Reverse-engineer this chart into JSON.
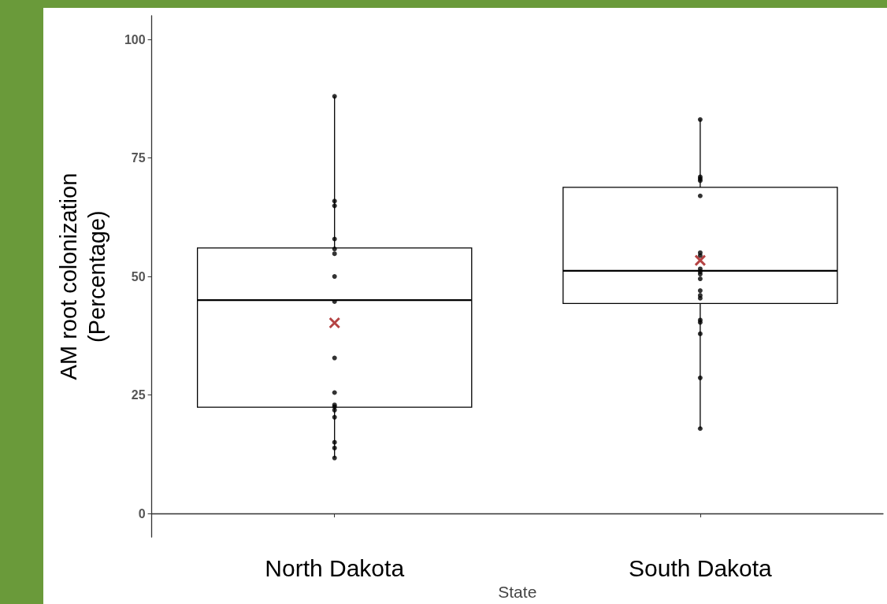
{
  "chart_data": {
    "type": "box",
    "xlabel": "State",
    "ylabel": "AM root colonization\n(Percentage)",
    "categories": [
      "North Dakota",
      "South Dakota"
    ],
    "ylim": [
      -5,
      105
    ],
    "yticks": [
      0,
      25,
      50,
      75,
      100
    ],
    "grid": false,
    "boxes": [
      {
        "low": 11.7,
        "q1": 22.4,
        "median": 45,
        "q3": 56,
        "high": 88,
        "mean": 40.2
      },
      {
        "low": 17.9,
        "q1": 44.3,
        "median": 51.2,
        "q3": 68.8,
        "high": 83.1,
        "mean": 53.4
      }
    ],
    "series": [
      {
        "type": "scatter",
        "color": "#000000",
        "marker": "circle",
        "x": [
          "North Dakota",
          "North Dakota",
          "North Dakota",
          "North Dakota",
          "North Dakota",
          "North Dakota",
          "North Dakota",
          "North Dakota",
          "North Dakota",
          "North Dakota",
          "North Dakota",
          "North Dakota",
          "North Dakota",
          "North Dakota",
          "North Dakota",
          "North Dakota",
          "North Dakota",
          "South Dakota",
          "South Dakota",
          "South Dakota",
          "South Dakota",
          "South Dakota",
          "South Dakota",
          "South Dakota",
          "South Dakota",
          "South Dakota",
          "South Dakota",
          "South Dakota",
          "South Dakota",
          "South Dakota",
          "South Dakota",
          "South Dakota",
          "South Dakota",
          "South Dakota",
          "South Dakota",
          "South Dakota"
        ],
        "values": [
          88,
          65.9,
          64.9,
          57.9,
          55.8,
          54.8,
          50,
          44.7,
          32.8,
          25.5,
          22.9,
          22.5,
          21.8,
          20.3,
          15,
          13.8,
          11.7,
          83.1,
          71,
          70.6,
          70.2,
          67,
          55,
          54.4,
          51.6,
          51,
          50.5,
          49.5,
          47,
          46,
          45.4,
          40.8,
          40.3,
          37.9,
          28.6,
          17.9
        ]
      }
    ]
  }
}
